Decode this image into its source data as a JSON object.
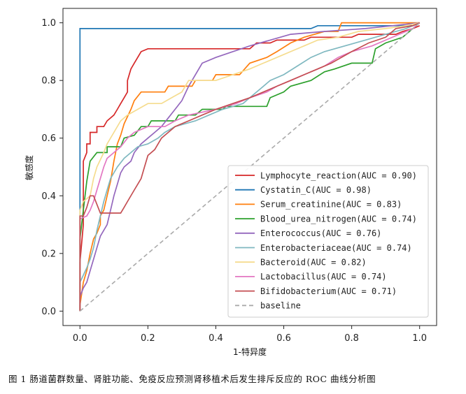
{
  "caption": "图 1 肠道菌群数量、肾脏功能、免疫反应预测肾移植术后发生排斥反应的 ROC 曲线分析图",
  "chart_data": {
    "type": "line",
    "title": "",
    "xlabel": "1-特异度",
    "ylabel": "敏感度",
    "xlim": [
      -0.05,
      1.05
    ],
    "ylim": [
      -0.05,
      1.05
    ],
    "xticks": [
      0.0,
      0.2,
      0.4,
      0.6,
      0.8,
      1.0
    ],
    "yticks": [
      0.0,
      0.2,
      0.4,
      0.6,
      0.8,
      1.0
    ],
    "xtick_labels": [
      "0.0",
      "0.2",
      "0.4",
      "0.6",
      "0.8",
      "1.0"
    ],
    "ytick_labels": [
      "0.0",
      "0.2",
      "0.4",
      "0.6",
      "0.8",
      "1.0"
    ],
    "grid": false,
    "legend_position": "lower-right",
    "series": [
      {
        "name": "Lymphocyte_reaction(AUC = 0.90)",
        "color": "#d62728",
        "points": [
          [
            0,
            0
          ],
          [
            0,
            0.17
          ],
          [
            0.01,
            0.3
          ],
          [
            0.01,
            0.52
          ],
          [
            0.02,
            0.55
          ],
          [
            0.02,
            0.58
          ],
          [
            0.03,
            0.58
          ],
          [
            0.03,
            0.62
          ],
          [
            0.05,
            0.62
          ],
          [
            0.05,
            0.64
          ],
          [
            0.07,
            0.64
          ],
          [
            0.08,
            0.66
          ],
          [
            0.1,
            0.68
          ],
          [
            0.11,
            0.7
          ],
          [
            0.12,
            0.72
          ],
          [
            0.13,
            0.74
          ],
          [
            0.14,
            0.76
          ],
          [
            0.14,
            0.8
          ],
          [
            0.15,
            0.84
          ],
          [
            0.16,
            0.86
          ],
          [
            0.17,
            0.88
          ],
          [
            0.18,
            0.9
          ],
          [
            0.2,
            0.91
          ],
          [
            0.5,
            0.91
          ],
          [
            0.52,
            0.93
          ],
          [
            0.56,
            0.93
          ],
          [
            0.58,
            0.94
          ],
          [
            0.66,
            0.94
          ],
          [
            0.68,
            0.95
          ],
          [
            0.8,
            0.95
          ],
          [
            0.82,
            0.96
          ],
          [
            0.93,
            0.96
          ],
          [
            0.95,
            0.97
          ],
          [
            0.98,
            0.98
          ],
          [
            1,
            0.99
          ]
        ]
      },
      {
        "name": "Cystatin_C(AUC = 0.98)",
        "color": "#1f77b4",
        "points": [
          [
            0,
            0
          ],
          [
            0,
            0.98
          ],
          [
            0.68,
            0.98
          ],
          [
            0.7,
            0.99
          ],
          [
            0.98,
            0.99
          ],
          [
            1,
            1
          ]
        ]
      },
      {
        "name": "Serum_creatinine(AUC = 0.83)",
        "color": "#ff7f0e",
        "points": [
          [
            0,
            0
          ],
          [
            0,
            0.02
          ],
          [
            0.01,
            0.1
          ],
          [
            0.02,
            0.14
          ],
          [
            0.03,
            0.2
          ],
          [
            0.04,
            0.25
          ],
          [
            0.05,
            0.27
          ],
          [
            0.06,
            0.3
          ],
          [
            0.06,
            0.33
          ],
          [
            0.07,
            0.35
          ],
          [
            0.08,
            0.4
          ],
          [
            0.09,
            0.45
          ],
          [
            0.1,
            0.52
          ],
          [
            0.11,
            0.58
          ],
          [
            0.12,
            0.61
          ],
          [
            0.13,
            0.65
          ],
          [
            0.15,
            0.7
          ],
          [
            0.16,
            0.73
          ],
          [
            0.18,
            0.76
          ],
          [
            0.25,
            0.76
          ],
          [
            0.26,
            0.78
          ],
          [
            0.33,
            0.78
          ],
          [
            0.34,
            0.8
          ],
          [
            0.39,
            0.8
          ],
          [
            0.4,
            0.82
          ],
          [
            0.47,
            0.82
          ],
          [
            0.5,
            0.86
          ],
          [
            0.55,
            0.88
          ],
          [
            0.58,
            0.9
          ],
          [
            0.62,
            0.93
          ],
          [
            0.66,
            0.95
          ],
          [
            0.72,
            0.97
          ],
          [
            0.76,
            0.97
          ],
          [
            0.77,
            1
          ],
          [
            1,
            1
          ]
        ]
      },
      {
        "name": "Blood_urea_nitrogen(AUC = 0.74)",
        "color": "#2ca02c",
        "points": [
          [
            0,
            0
          ],
          [
            0,
            0.25
          ],
          [
            0.01,
            0.35
          ],
          [
            0.02,
            0.45
          ],
          [
            0.03,
            0.52
          ],
          [
            0.05,
            0.55
          ],
          [
            0.08,
            0.55
          ],
          [
            0.08,
            0.57
          ],
          [
            0.12,
            0.57
          ],
          [
            0.13,
            0.6
          ],
          [
            0.16,
            0.61
          ],
          [
            0.18,
            0.64
          ],
          [
            0.2,
            0.64
          ],
          [
            0.21,
            0.66
          ],
          [
            0.28,
            0.66
          ],
          [
            0.29,
            0.68
          ],
          [
            0.34,
            0.68
          ],
          [
            0.36,
            0.7
          ],
          [
            0.42,
            0.7
          ],
          [
            0.43,
            0.71
          ],
          [
            0.55,
            0.71
          ],
          [
            0.56,
            0.74
          ],
          [
            0.6,
            0.76
          ],
          [
            0.62,
            0.78
          ],
          [
            0.68,
            0.8
          ],
          [
            0.72,
            0.83
          ],
          [
            0.75,
            0.84
          ],
          [
            0.8,
            0.86
          ],
          [
            0.86,
            0.86
          ],
          [
            0.87,
            0.91
          ],
          [
            0.9,
            0.93
          ],
          [
            0.95,
            0.95
          ],
          [
            0.97,
            0.97
          ],
          [
            1,
            1
          ]
        ]
      },
      {
        "name": "Enterococcus(AUC = 0.76)",
        "color": "#9467bd",
        "points": [
          [
            0,
            0
          ],
          [
            0,
            0.05
          ],
          [
            0.01,
            0.08
          ],
          [
            0.02,
            0.1
          ],
          [
            0.03,
            0.14
          ],
          [
            0.04,
            0.18
          ],
          [
            0.05,
            0.22
          ],
          [
            0.06,
            0.26
          ],
          [
            0.08,
            0.3
          ],
          [
            0.09,
            0.35
          ],
          [
            0.1,
            0.4
          ],
          [
            0.11,
            0.44
          ],
          [
            0.12,
            0.48
          ],
          [
            0.13,
            0.5
          ],
          [
            0.15,
            0.52
          ],
          [
            0.16,
            0.55
          ],
          [
            0.18,
            0.58
          ],
          [
            0.2,
            0.6
          ],
          [
            0.22,
            0.62
          ],
          [
            0.24,
            0.64
          ],
          [
            0.26,
            0.67
          ],
          [
            0.28,
            0.7
          ],
          [
            0.3,
            0.73
          ],
          [
            0.32,
            0.78
          ],
          [
            0.34,
            0.82
          ],
          [
            0.36,
            0.86
          ],
          [
            0.4,
            0.88
          ],
          [
            0.45,
            0.9
          ],
          [
            0.5,
            0.92
          ],
          [
            0.56,
            0.94
          ],
          [
            0.62,
            0.96
          ],
          [
            0.72,
            0.97
          ],
          [
            0.84,
            0.98
          ],
          [
            0.92,
            0.99
          ],
          [
            1,
            1
          ]
        ]
      },
      {
        "name": "Enterobacteriaceae(AUC = 0.74)",
        "color": "#7fb8c0",
        "points": [
          [
            0,
            0
          ],
          [
            0,
            0.1
          ],
          [
            0.02,
            0.15
          ],
          [
            0.03,
            0.18
          ],
          [
            0.04,
            0.22
          ],
          [
            0.05,
            0.28
          ],
          [
            0.06,
            0.33
          ],
          [
            0.07,
            0.38
          ],
          [
            0.08,
            0.42
          ],
          [
            0.09,
            0.46
          ],
          [
            0.11,
            0.5
          ],
          [
            0.13,
            0.53
          ],
          [
            0.15,
            0.55
          ],
          [
            0.17,
            0.57
          ],
          [
            0.2,
            0.58
          ],
          [
            0.23,
            0.6
          ],
          [
            0.25,
            0.62
          ],
          [
            0.28,
            0.64
          ],
          [
            0.34,
            0.66
          ],
          [
            0.38,
            0.68
          ],
          [
            0.42,
            0.7
          ],
          [
            0.48,
            0.72
          ],
          [
            0.5,
            0.74
          ],
          [
            0.53,
            0.77
          ],
          [
            0.56,
            0.8
          ],
          [
            0.6,
            0.82
          ],
          [
            0.64,
            0.85
          ],
          [
            0.68,
            0.88
          ],
          [
            0.72,
            0.9
          ],
          [
            0.78,
            0.92
          ],
          [
            0.84,
            0.94
          ],
          [
            0.9,
            0.96
          ],
          [
            0.96,
            0.98
          ],
          [
            1,
            1
          ]
        ]
      },
      {
        "name": "Bacteroid(AUC = 0.82)",
        "color": "#f5dc8e",
        "points": [
          [
            0,
            0
          ],
          [
            0,
            0.35
          ],
          [
            0.01,
            0.38
          ],
          [
            0.03,
            0.4
          ],
          [
            0.04,
            0.46
          ],
          [
            0.05,
            0.5
          ],
          [
            0.07,
            0.55
          ],
          [
            0.08,
            0.58
          ],
          [
            0.1,
            0.62
          ],
          [
            0.12,
            0.66
          ],
          [
            0.14,
            0.68
          ],
          [
            0.17,
            0.7
          ],
          [
            0.2,
            0.72
          ],
          [
            0.24,
            0.72
          ],
          [
            0.27,
            0.74
          ],
          [
            0.3,
            0.76
          ],
          [
            0.32,
            0.8
          ],
          [
            0.36,
            0.8
          ],
          [
            0.4,
            0.8
          ],
          [
            0.45,
            0.82
          ],
          [
            0.5,
            0.84
          ],
          [
            0.54,
            0.86
          ],
          [
            0.58,
            0.88
          ],
          [
            0.62,
            0.9
          ],
          [
            0.66,
            0.92
          ],
          [
            0.7,
            0.94
          ],
          [
            0.76,
            0.95
          ],
          [
            0.82,
            0.97
          ],
          [
            0.9,
            0.98
          ],
          [
            0.96,
            0.99
          ],
          [
            1,
            1
          ]
        ]
      },
      {
        "name": "Lactobacillus(AUC = 0.74)",
        "color": "#e377c2",
        "points": [
          [
            0,
            0
          ],
          [
            0,
            0.32
          ],
          [
            0.02,
            0.33
          ],
          [
            0.03,
            0.35
          ],
          [
            0.04,
            0.38
          ],
          [
            0.05,
            0.42
          ],
          [
            0.06,
            0.46
          ],
          [
            0.07,
            0.5
          ],
          [
            0.08,
            0.53
          ],
          [
            0.1,
            0.55
          ],
          [
            0.12,
            0.57
          ],
          [
            0.14,
            0.6
          ],
          [
            0.16,
            0.62
          ],
          [
            0.18,
            0.63
          ],
          [
            0.2,
            0.64
          ],
          [
            0.25,
            0.64
          ],
          [
            0.28,
            0.66
          ],
          [
            0.32,
            0.68
          ],
          [
            0.4,
            0.7
          ],
          [
            0.46,
            0.72
          ],
          [
            0.5,
            0.74
          ],
          [
            0.55,
            0.76
          ],
          [
            0.58,
            0.78
          ],
          [
            0.62,
            0.8
          ],
          [
            0.66,
            0.82
          ],
          [
            0.72,
            0.85
          ],
          [
            0.76,
            0.88
          ],
          [
            0.8,
            0.9
          ],
          [
            0.86,
            0.92
          ],
          [
            0.9,
            0.94
          ],
          [
            0.94,
            0.96
          ],
          [
            0.98,
            0.98
          ],
          [
            1,
            1
          ]
        ]
      },
      {
        "name": "Bifidobacterium(AUC = 0.71)",
        "color": "#c44e52",
        "points": [
          [
            0,
            0
          ],
          [
            0,
            0.33
          ],
          [
            0.01,
            0.33
          ],
          [
            0.02,
            0.36
          ],
          [
            0.03,
            0.4
          ],
          [
            0.04,
            0.4
          ],
          [
            0.06,
            0.34
          ],
          [
            0.12,
            0.34
          ],
          [
            0.13,
            0.36
          ],
          [
            0.14,
            0.38
          ],
          [
            0.16,
            0.42
          ],
          [
            0.17,
            0.44
          ],
          [
            0.18,
            0.46
          ],
          [
            0.19,
            0.5
          ],
          [
            0.2,
            0.54
          ],
          [
            0.22,
            0.56
          ],
          [
            0.24,
            0.6
          ],
          [
            0.26,
            0.62
          ],
          [
            0.28,
            0.64
          ],
          [
            0.32,
            0.66
          ],
          [
            0.36,
            0.68
          ],
          [
            0.4,
            0.7
          ],
          [
            0.45,
            0.72
          ],
          [
            0.5,
            0.74
          ],
          [
            0.54,
            0.76
          ],
          [
            0.58,
            0.78
          ],
          [
            0.62,
            0.8
          ],
          [
            0.66,
            0.82
          ],
          [
            0.7,
            0.84
          ],
          [
            0.74,
            0.86
          ],
          [
            0.8,
            0.9
          ],
          [
            0.85,
            0.93
          ],
          [
            0.9,
            0.95
          ],
          [
            0.93,
            0.98
          ],
          [
            0.98,
            0.99
          ],
          [
            1,
            1
          ]
        ]
      },
      {
        "name": "baseline",
        "color": "#aaaaaa",
        "dashed": true,
        "points": [
          [
            0,
            0
          ],
          [
            1,
            1
          ]
        ]
      }
    ]
  }
}
